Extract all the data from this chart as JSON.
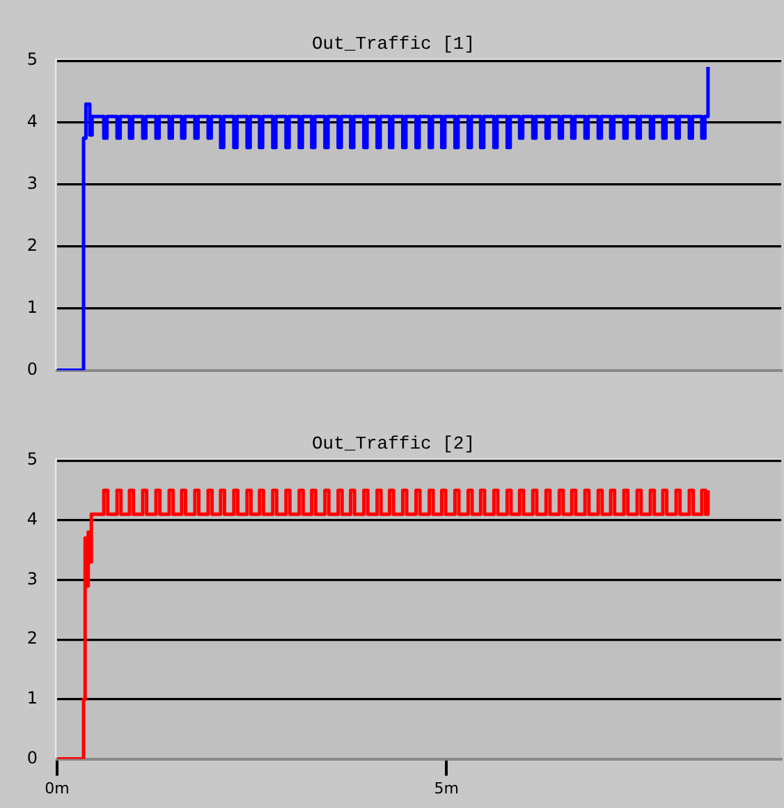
{
  "chart_data": [
    {
      "type": "step",
      "title": "Out_Traffic [1]",
      "xlim": [
        0,
        9.3
      ],
      "ylim": [
        0,
        5
      ],
      "yticks": [
        0,
        1,
        2,
        3,
        4,
        5
      ],
      "grid": "y",
      "tick_labels": "y",
      "marker": "none",
      "series": [
        {
          "color": "#0000ff",
          "x": [
            0,
            0.34,
            0.37,
            0.42,
            0.45,
            0.6,
            0.64,
            0.77,
            0.81,
            0.93,
            0.97,
            1.1,
            1.14,
            1.27,
            1.31,
            1.44,
            1.48,
            1.6,
            1.64,
            1.77,
            1.81,
            1.94,
            1.98,
            2.1,
            2.14,
            2.27,
            2.31,
            2.44,
            2.48,
            2.6,
            2.64,
            2.77,
            2.81,
            2.94,
            2.98,
            3.11,
            3.15,
            3.27,
            3.31,
            3.44,
            3.48,
            3.61,
            3.65,
            3.77,
            3.81,
            3.94,
            3.98,
            4.11,
            4.15,
            4.27,
            4.31,
            4.44,
            4.48,
            4.61,
            4.65,
            4.78,
            4.82,
            4.94,
            4.98,
            5.11,
            5.15,
            5.28,
            5.32,
            5.44,
            5.48,
            5.61,
            5.65,
            5.78,
            5.82,
            5.94,
            5.98,
            6.11,
            6.15,
            6.28,
            6.32,
            6.45,
            6.49,
            6.61,
            6.65,
            6.78,
            6.82,
            6.95,
            6.99,
            7.11,
            7.15,
            7.28,
            7.32,
            7.45,
            7.49,
            7.62,
            7.66,
            7.78,
            7.82,
            7.95,
            7.99,
            8.12,
            8.16,
            8.28,
            8.32,
            8.36
          ],
          "values": [
            0,
            3.75,
            4.3,
            3.8,
            4.1,
            3.75,
            4.1,
            3.75,
            4.1,
            3.75,
            4.1,
            3.75,
            4.1,
            3.75,
            4.1,
            3.75,
            4.1,
            3.75,
            4.1,
            3.75,
            4.1,
            3.75,
            4.1,
            3.6,
            4.1,
            3.6,
            4.1,
            3.6,
            4.1,
            3.6,
            4.1,
            3.6,
            4.1,
            3.6,
            4.1,
            3.6,
            4.1,
            3.6,
            4.1,
            3.6,
            4.1,
            3.6,
            4.1,
            3.6,
            4.1,
            3.6,
            4.1,
            3.6,
            4.1,
            3.6,
            4.1,
            3.6,
            4.1,
            3.6,
            4.1,
            3.6,
            4.1,
            3.6,
            4.1,
            3.6,
            4.1,
            3.6,
            4.1,
            3.6,
            4.1,
            3.6,
            4.1,
            3.6,
            4.1,
            3.75,
            4.1,
            3.75,
            4.1,
            3.75,
            4.1,
            3.75,
            4.1,
            3.75,
            4.1,
            3.75,
            4.1,
            3.75,
            4.1,
            3.75,
            4.1,
            3.75,
            4.1,
            3.75,
            4.1,
            3.75,
            4.1,
            3.75,
            4.1,
            3.75,
            4.1,
            3.75,
            4.1,
            3.75,
            4.1,
            4.9
          ]
        }
      ]
    },
    {
      "type": "step",
      "title": "Out_Traffic [2]",
      "xlim": [
        0,
        9.3
      ],
      "xticks": [
        {
          "value": 0,
          "label": "0m"
        },
        {
          "value": 5,
          "label": "5m"
        }
      ],
      "ylim": [
        0,
        5
      ],
      "yticks": [
        0,
        1,
        2,
        3,
        4,
        5
      ],
      "grid": "y",
      "marker": "none",
      "series": [
        {
          "color": "#ff0000",
          "x": [
            0,
            0.34,
            0.36,
            0.38,
            0.4,
            0.42,
            0.44,
            0.6,
            0.65,
            0.77,
            0.82,
            0.93,
            0.98,
            1.1,
            1.15,
            1.27,
            1.32,
            1.44,
            1.49,
            1.6,
            1.65,
            1.77,
            1.82,
            1.94,
            1.99,
            2.1,
            2.15,
            2.27,
            2.32,
            2.44,
            2.49,
            2.6,
            2.65,
            2.77,
            2.82,
            2.94,
            2.99,
            3.11,
            3.16,
            3.27,
            3.32,
            3.44,
            3.49,
            3.61,
            3.66,
            3.77,
            3.82,
            3.94,
            3.99,
            4.11,
            4.16,
            4.27,
            4.32,
            4.44,
            4.49,
            4.61,
            4.66,
            4.78,
            4.83,
            4.94,
            4.99,
            5.11,
            5.16,
            5.28,
            5.33,
            5.44,
            5.49,
            5.61,
            5.66,
            5.78,
            5.83,
            5.94,
            5.99,
            6.11,
            6.16,
            6.28,
            6.33,
            6.45,
            6.5,
            6.61,
            6.66,
            6.78,
            6.83,
            6.95,
            7.0,
            7.11,
            7.16,
            7.28,
            7.33,
            7.45,
            7.5,
            7.62,
            7.67,
            7.78,
            7.83,
            7.95,
            8.0,
            8.12,
            8.17,
            8.28,
            8.33,
            8.36
          ],
          "values": [
            0,
            1,
            3.7,
            2.9,
            3.8,
            3.3,
            4.1,
            4.5,
            4.1,
            4.5,
            4.1,
            4.5,
            4.1,
            4.5,
            4.1,
            4.5,
            4.1,
            4.5,
            4.1,
            4.5,
            4.1,
            4.5,
            4.1,
            4.5,
            4.1,
            4.5,
            4.1,
            4.5,
            4.1,
            4.5,
            4.1,
            4.5,
            4.1,
            4.5,
            4.1,
            4.5,
            4.1,
            4.5,
            4.1,
            4.5,
            4.1,
            4.5,
            4.1,
            4.5,
            4.1,
            4.5,
            4.1,
            4.5,
            4.1,
            4.5,
            4.1,
            4.5,
            4.1,
            4.5,
            4.1,
            4.5,
            4.1,
            4.5,
            4.1,
            4.5,
            4.1,
            4.5,
            4.1,
            4.5,
            4.1,
            4.5,
            4.1,
            4.5,
            4.1,
            4.5,
            4.1,
            4.5,
            4.1,
            4.5,
            4.1,
            4.5,
            4.1,
            4.5,
            4.1,
            4.5,
            4.1,
            4.5,
            4.1,
            4.5,
            4.1,
            4.5,
            4.1,
            4.5,
            4.1,
            4.5,
            4.1,
            4.5,
            4.1,
            4.5,
            4.1,
            4.5,
            4.1,
            4.5,
            4.1,
            4.5,
            4.1,
            4.5
          ]
        }
      ]
    }
  ]
}
